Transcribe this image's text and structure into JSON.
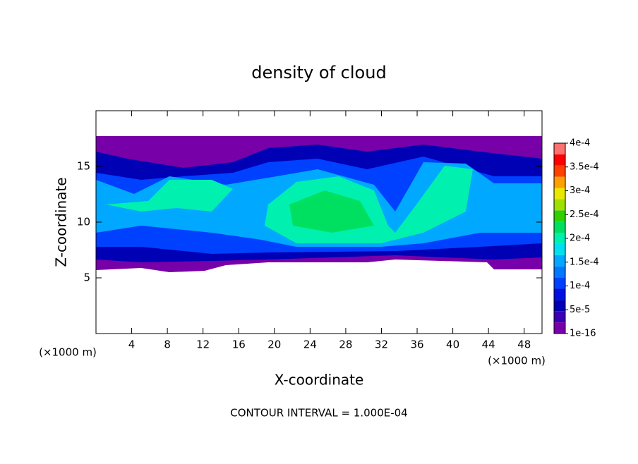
{
  "chart_data": {
    "type": "contour",
    "title": "density of cloud",
    "x_label": "X-coordinate",
    "y_label": "Z-coordinate",
    "x_unit_left": "(×1000 m)",
    "x_unit_right": "(×1000 m)",
    "annotation": "CONTOUR INTERVAL = 1.000E-04",
    "xlim": [
      0,
      50
    ],
    "xticks": [
      4,
      8,
      12,
      16,
      20,
      24,
      28,
      32,
      36,
      40,
      44,
      48
    ],
    "ylim": [
      0,
      20
    ],
    "yticks": [
      5,
      10,
      15
    ],
    "clim": [
      1e-16,
      0.0004
    ],
    "cticks": [
      {
        "value": 1e-16,
        "label": "1e-16"
      },
      {
        "value": 5e-05,
        "label": "5e-5"
      },
      {
        "value": 0.0001,
        "label": "1e-4"
      },
      {
        "value": 0.00015,
        "label": "1.5e-4"
      },
      {
        "value": 0.0002,
        "label": "2e-4"
      },
      {
        "value": 0.00025,
        "label": "2.5e-4"
      },
      {
        "value": 0.0003,
        "label": "3e-4"
      },
      {
        "value": 0.00035,
        "label": "3.5e-4"
      },
      {
        "value": 0.0004,
        "label": "4e-4"
      }
    ],
    "colors": [
      "#7800a8",
      "#3c00b4",
      "#0000b4",
      "#0010e0",
      "#0040ff",
      "#0078ff",
      "#00a8ff",
      "#00e0f0",
      "#00f0b0",
      "#00e060",
      "#30d000",
      "#a0e000",
      "#e8e800",
      "#ffa000",
      "#ff4000",
      "#ff0000",
      "#ff7070"
    ]
  }
}
